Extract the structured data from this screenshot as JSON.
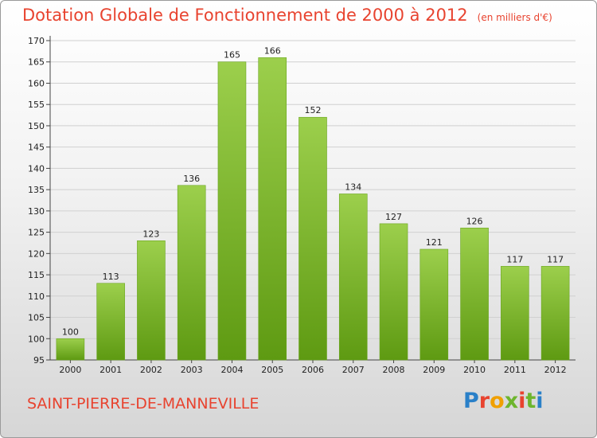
{
  "header": {
    "title": "Dotation Globale de Fonctionnement de 2000 à 2012",
    "unit": "(en milliers d'€)"
  },
  "footer": {
    "commune": "SAINT-PIERRE-DE-MANNEVILLE",
    "logo_text": "Proxiti"
  },
  "colors": {
    "title": "#e8432f",
    "bar_light": "#9ccf4c",
    "bar_dark": "#5e9a12",
    "logo": [
      "#2a80c8",
      "#e8432f",
      "#f0a000",
      "#6db52d",
      "#e8432f",
      "#6db52d",
      "#2a80c8"
    ]
  },
  "chart_data": {
    "type": "bar",
    "title": "Dotation Globale de Fonctionnement de 2000 à 2012",
    "subtitle": "(en milliers d'€)",
    "categories": [
      "2000",
      "2001",
      "2002",
      "2003",
      "2004",
      "2005",
      "2006",
      "2007",
      "2008",
      "2009",
      "2010",
      "2011",
      "2012"
    ],
    "values": [
      100,
      113,
      123,
      136,
      165,
      166,
      152,
      134,
      127,
      121,
      126,
      117,
      117
    ],
    "data_labels": [
      "100",
      "113",
      "123",
      "136",
      "165",
      "166",
      "152",
      "134",
      "127",
      "121",
      "126",
      "117",
      "117"
    ],
    "ylim": [
      95,
      170
    ],
    "yticks": [
      95,
      100,
      105,
      110,
      115,
      120,
      125,
      130,
      135,
      140,
      145,
      150,
      155,
      160,
      165,
      170
    ],
    "grid": true,
    "legend": "none"
  }
}
